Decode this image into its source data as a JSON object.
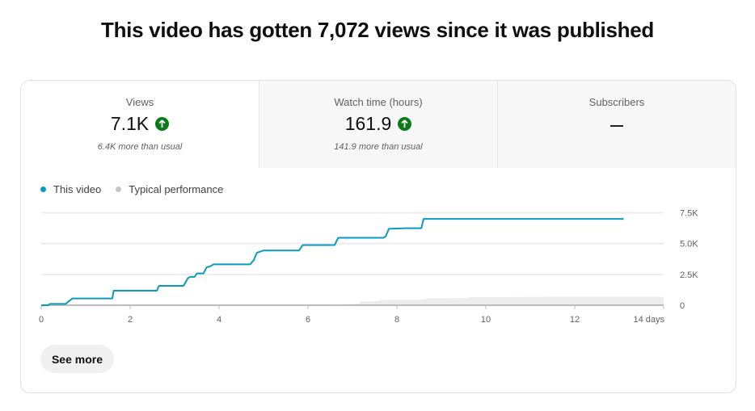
{
  "header": {
    "title": "This video has gotten 7,072 views since it was published"
  },
  "metrics": [
    {
      "label": "Views",
      "value": "7.1K",
      "trend_icon": "arrow-up-circle-icon",
      "note": "6.4K more than usual",
      "selected": true
    },
    {
      "label": "Watch time (hours)",
      "value": "161.9",
      "trend_icon": "arrow-up-circle-icon",
      "note": "141.9 more than usual",
      "selected": false
    },
    {
      "label": "Subscribers",
      "value": "—",
      "selected": false
    }
  ],
  "legend": [
    {
      "name": "This video",
      "color": "#0a9ac1"
    },
    {
      "name": "Typical performance",
      "color": "#c6c6c6"
    }
  ],
  "colors": {
    "up": "#0b7a1a",
    "series": "#0a9ac1",
    "typical": "#ececec"
  },
  "chart_data": {
    "type": "line",
    "xlabel": "",
    "ylabel": "",
    "x_ticks": [
      "0",
      "2",
      "4",
      "6",
      "8",
      "10",
      "12",
      "14 days"
    ],
    "y_ticks": [
      "0",
      "2.5K",
      "5.0K",
      "7.5K"
    ],
    "xlim": [
      0,
      14
    ],
    "ylim": [
      0,
      7500
    ],
    "grid": true,
    "legend_position": "top-left",
    "series": [
      {
        "name": "This video",
        "type": "line",
        "points": [
          [
            0,
            0
          ],
          [
            0.15,
            0
          ],
          [
            0.2,
            110
          ],
          [
            0.55,
            110
          ],
          [
            0.7,
            550
          ],
          [
            1.6,
            550
          ],
          [
            1.63,
            1180
          ],
          [
            2.6,
            1180
          ],
          [
            2.65,
            1570
          ],
          [
            3.2,
            1570
          ],
          [
            3.3,
            2200
          ],
          [
            3.35,
            2300
          ],
          [
            3.45,
            2300
          ],
          [
            3.5,
            2580
          ],
          [
            3.65,
            2580
          ],
          [
            3.72,
            3080
          ],
          [
            3.8,
            3150
          ],
          [
            3.88,
            3320
          ],
          [
            4.7,
            3320
          ],
          [
            4.78,
            3650
          ],
          [
            4.85,
            4250
          ],
          [
            5.0,
            4440
          ],
          [
            5.8,
            4440
          ],
          [
            5.88,
            4880
          ],
          [
            6.6,
            4880
          ],
          [
            6.68,
            5470
          ],
          [
            7.7,
            5470
          ],
          [
            7.75,
            5600
          ],
          [
            7.82,
            6200
          ],
          [
            8.2,
            6250
          ],
          [
            8.55,
            6250
          ],
          [
            8.6,
            7000
          ],
          [
            13.1,
            7000
          ]
        ]
      },
      {
        "name": "Typical performance",
        "type": "area",
        "points": [
          [
            0,
            0
          ],
          [
            5.5,
            30
          ],
          [
            6.5,
            60
          ],
          [
            7.15,
            120
          ],
          [
            7.2,
            300
          ],
          [
            7.6,
            330
          ],
          [
            7.65,
            430
          ],
          [
            8.6,
            450
          ],
          [
            8.65,
            550
          ],
          [
            9.6,
            580
          ],
          [
            9.65,
            650
          ],
          [
            11.5,
            680
          ],
          [
            14,
            680
          ]
        ]
      }
    ]
  },
  "footer": {
    "see_more_label": "See more"
  }
}
